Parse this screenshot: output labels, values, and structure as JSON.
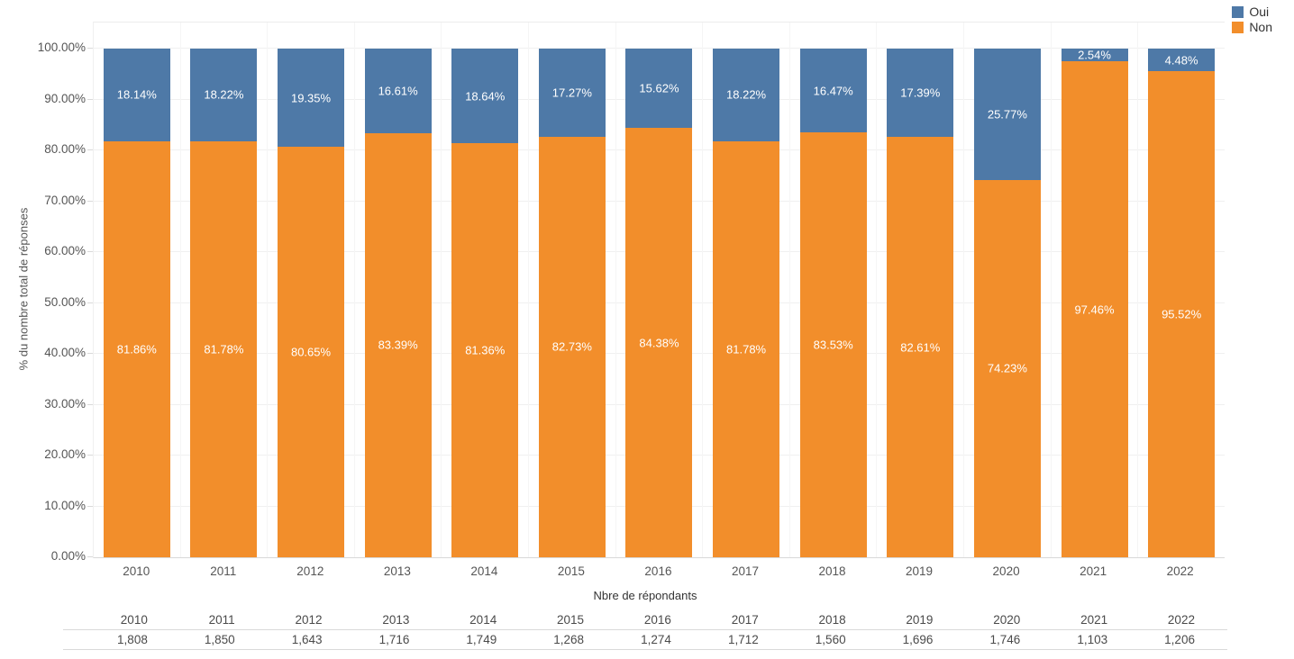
{
  "legend": {
    "items": [
      {
        "label": "Oui",
        "color": "#4e79a7"
      },
      {
        "label": "Non",
        "color": "#f28e2b"
      }
    ]
  },
  "chart_data": {
    "type": "bar",
    "subtype": "stacked-100-percent",
    "title": "",
    "ylabel": "% du nombre total de réponses",
    "xlabel": "",
    "categories": [
      "2010",
      "2011",
      "2012",
      "2013",
      "2014",
      "2015",
      "2016",
      "2017",
      "2018",
      "2019",
      "2020",
      "2021",
      "2022"
    ],
    "series": [
      {
        "name": "Oui",
        "color": "#4e79a7",
        "values": [
          18.14,
          18.22,
          19.35,
          16.61,
          18.64,
          17.27,
          15.62,
          18.22,
          16.47,
          17.39,
          25.77,
          2.54,
          4.48
        ]
      },
      {
        "name": "Non",
        "color": "#f28e2b",
        "values": [
          81.86,
          81.78,
          80.65,
          83.39,
          81.36,
          82.73,
          84.38,
          81.78,
          83.53,
          82.61,
          74.23,
          97.46,
          95.52
        ]
      }
    ],
    "y_ticks": [
      "0.00%",
      "10.00%",
      "20.00%",
      "30.00%",
      "40.00%",
      "50.00%",
      "60.00%",
      "70.00%",
      "80.00%",
      "90.00%",
      "100.00%"
    ],
    "ylim": [
      0,
      100
    ],
    "grid": true,
    "legend_position": "top-right",
    "bar_label_suffix": "%"
  },
  "table": {
    "title": "Nbre de répondants",
    "years": [
      "2010",
      "2011",
      "2012",
      "2013",
      "2014",
      "2015",
      "2016",
      "2017",
      "2018",
      "2019",
      "2020",
      "2021",
      "2022"
    ],
    "values": [
      "1,808",
      "1,850",
      "1,643",
      "1,716",
      "1,749",
      "1,268",
      "1,274",
      "1,712",
      "1,560",
      "1,696",
      "1,746",
      "1,103",
      "1,206"
    ]
  }
}
